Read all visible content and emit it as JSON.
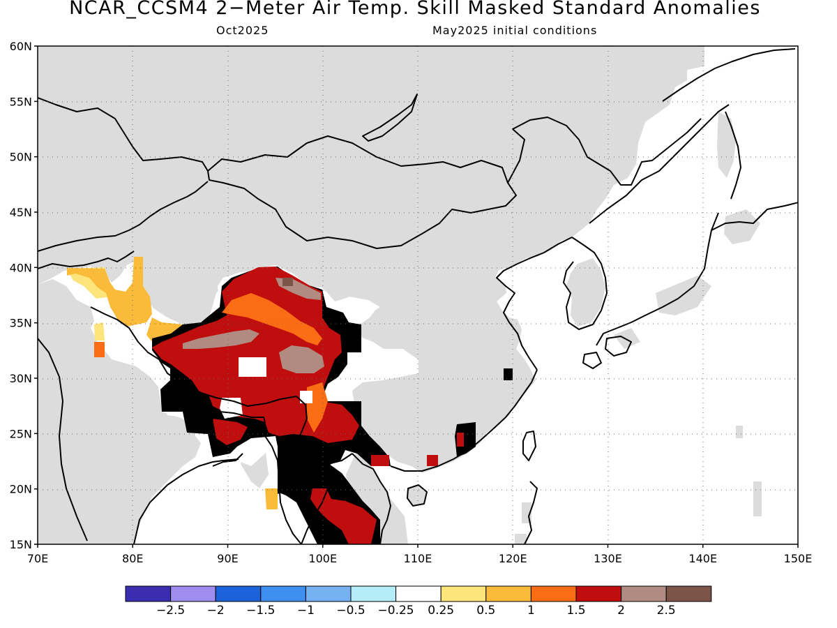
{
  "title": "NCAR_CCSM4 2−Meter Air Temp. Skill Masked Standard Anomalies",
  "subtitle_left": "Oct2025",
  "subtitle_right": "May2025 initial conditions",
  "axes": {
    "lat_labels": [
      "60N",
      "55N",
      "50N",
      "45N",
      "40N",
      "35N",
      "30N",
      "25N",
      "20N",
      "15N"
    ],
    "lon_labels": [
      "70E",
      "80E",
      "90E",
      "100E",
      "110E",
      "120E",
      "130E",
      "140E",
      "150E"
    ],
    "lat_values": [
      60,
      55,
      50,
      45,
      40,
      35,
      30,
      25,
      20,
      15
    ],
    "lon_values": [
      70,
      80,
      90,
      100,
      110,
      120,
      130,
      140,
      150
    ],
    "lat_range": [
      15,
      60
    ],
    "lon_range": [
      70,
      150
    ],
    "grid": "dotted"
  },
  "colors": {
    "masked_land": "#dcdcdc",
    "ocean_unmasked": "#ffffff",
    "coastline": "#000000"
  },
  "colorbar": {
    "bins": [
      {
        "color": "#3a2db0"
      },
      {
        "color": "#9f8df0"
      },
      {
        "color": "#1c63db"
      },
      {
        "color": "#3f8ff0"
      },
      {
        "color": "#76b2f2"
      },
      {
        "color": "#b4edf7"
      },
      {
        "color": "#ffffff"
      },
      {
        "color": "#fde57b"
      },
      {
        "color": "#fbbb3a"
      },
      {
        "color": "#fb6d14"
      },
      {
        "color": "#c00e0e"
      },
      {
        "color": "#b18b81"
      },
      {
        "color": "#7c5448"
      }
    ],
    "labels": [
      "−2.5",
      "−2",
      "−1.5",
      "−1",
      "−0.5",
      "−0.25",
      "0.25",
      "0.5",
      "1",
      "1.5",
      "2",
      "2.5"
    ]
  },
  "anomaly_regions": [
    {
      "name": "tibet-ring-orange",
      "category": "1 to 1.5",
      "color": "#fb6d14"
    },
    {
      "name": "tibet-core-red",
      "category": "1.5 to 2",
      "color": "#c00e0e"
    },
    {
      "name": "tibet-peak-brown",
      "category": "2 to 2.5",
      "color": "#b18b81"
    },
    {
      "name": "tibet-max",
      "category": ">2.5",
      "color": "#7c5448"
    },
    {
      "name": "western-himalaya-yellow",
      "category": "0.5 to 1",
      "color": "#fbbb3a"
    },
    {
      "name": "indochina-orange",
      "category": "1 to 1.5",
      "color": "#fb6d14"
    },
    {
      "name": "indochina-red",
      "category": "1.5 to 2",
      "color": "#c00e0e"
    }
  ]
}
